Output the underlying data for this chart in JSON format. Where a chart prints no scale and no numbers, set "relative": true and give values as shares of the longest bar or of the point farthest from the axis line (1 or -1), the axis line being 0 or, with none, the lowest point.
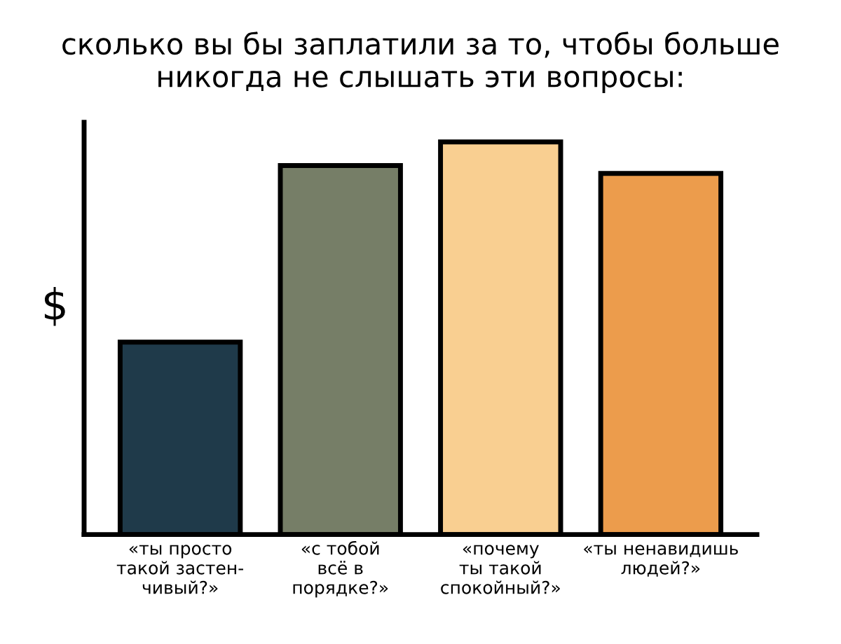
{
  "chart_data": {
    "type": "bar",
    "title": "сколько вы бы заплатили за то, чтобы больше\nникогда не слышать эти вопросы:",
    "ylabel": "$",
    "categories": [
      "«ты просто\nтакой застен-\nчивый?»",
      "«с тобой\nвсё в\nпорядке?»",
      "«почему\nты такой\nспокойный?»",
      "«ты ненавидишь\nлюдей?»"
    ],
    "values": [
      0.49,
      0.94,
      1,
      0.92
    ],
    "colors": [
      "#1f3a4a",
      "#767e67",
      "#f9cf91",
      "#ec9c4c"
    ],
    "relative": true,
    "grid": false,
    "legend": false
  }
}
